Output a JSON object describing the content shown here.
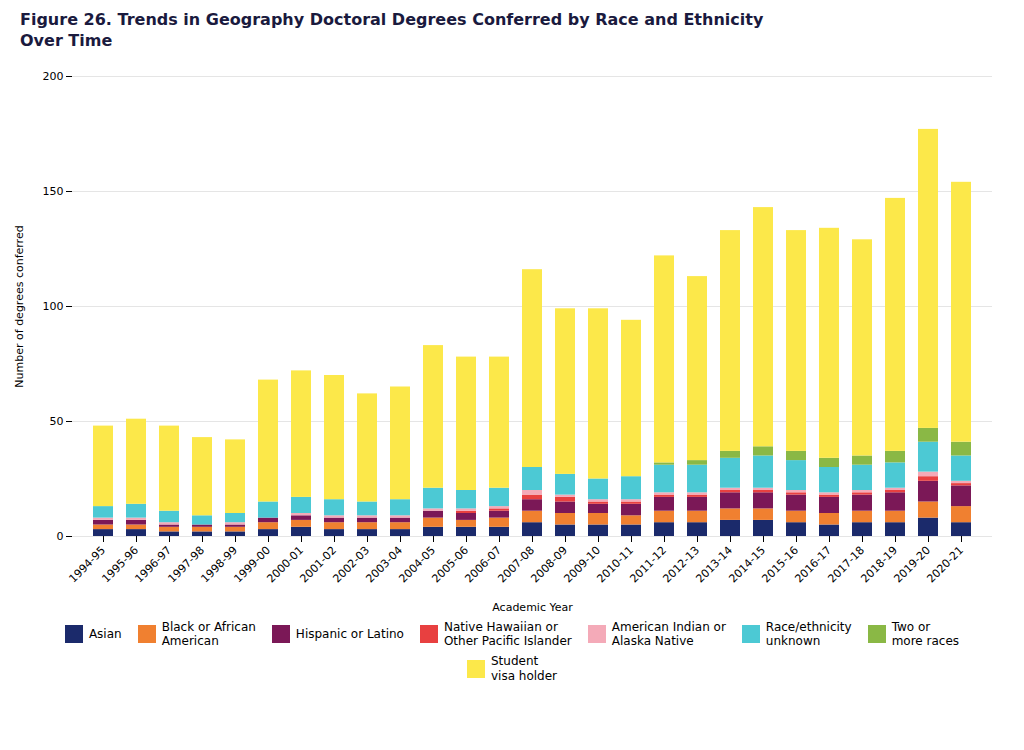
{
  "chart_data": {
    "type": "bar",
    "title": "Figure 26. Trends in Geography Doctoral Degrees Conferred by Race and Ethnicity\nOver Time",
    "xlabel": "Academic Year",
    "ylabel": "Number of degrees conferred",
    "categories": [
      "1994-95",
      "1995-96",
      "1996-97",
      "1997-98",
      "1998-99",
      "1999-00",
      "2000-01",
      "2001-02",
      "2002-03",
      "2003-04",
      "2004-05",
      "2005-06",
      "2006-07",
      "2007-08",
      "2008-09",
      "2009-10",
      "2010-11",
      "2011-12",
      "2012-13",
      "2013-14",
      "2014-15",
      "2015-16",
      "2016-17",
      "2017-18",
      "2018-19",
      "2019-20",
      "2020-21"
    ],
    "series": [
      {
        "name": "Asian",
        "color": "#1b2a6b",
        "values": [
          3,
          3,
          2,
          2,
          2,
          3,
          4,
          3,
          3,
          3,
          4,
          4,
          4,
          6,
          5,
          5,
          5,
          6,
          6,
          7,
          7,
          6,
          5,
          6,
          6,
          8,
          6
        ]
      },
      {
        "name": "Black or African\nAmerican",
        "color": "#f08030",
        "values": [
          2,
          2,
          2,
          2,
          2,
          3,
          3,
          3,
          3,
          3,
          4,
          3,
          4,
          5,
          5,
          5,
          4,
          5,
          5,
          5,
          5,
          5,
          5,
          5,
          5,
          7,
          7
        ]
      },
      {
        "name": "Hispanic or Latino",
        "color": "#7b1857",
        "values": [
          2,
          2,
          1,
          1,
          1,
          2,
          2,
          2,
          2,
          2,
          3,
          3,
          3,
          5,
          5,
          4,
          5,
          6,
          6,
          7,
          7,
          7,
          7,
          7,
          8,
          9,
          9
        ]
      },
      {
        "name": "Native Hawaiian or\nOther Pacific Islander",
        "color": "#e84040",
        "values": [
          0,
          0,
          0,
          0,
          0,
          0,
          0,
          0,
          0,
          0,
          0,
          1,
          1,
          2,
          2,
          1,
          1,
          1,
          1,
          1,
          1,
          1,
          1,
          1,
          1,
          2,
          1
        ]
      },
      {
        "name": "American Indian or\nAlaska Native",
        "color": "#f4aab8",
        "values": [
          1,
          1,
          1,
          0,
          1,
          0,
          1,
          1,
          1,
          1,
          1,
          1,
          1,
          2,
          1,
          1,
          1,
          1,
          1,
          1,
          1,
          1,
          1,
          1,
          1,
          2,
          1
        ]
      },
      {
        "name": "Race/ethnicity\nunknown",
        "color": "#4cc9d4",
        "values": [
          5,
          6,
          5,
          4,
          4,
          7,
          7,
          7,
          6,
          7,
          9,
          8,
          8,
          10,
          9,
          9,
          10,
          12,
          12,
          13,
          14,
          13,
          11,
          11,
          11,
          13,
          11
        ]
      },
      {
        "name": "Two or\nmore races",
        "color": "#8ab845",
        "values": [
          0,
          0,
          0,
          0,
          0,
          0,
          0,
          0,
          0,
          0,
          0,
          0,
          0,
          0,
          0,
          0,
          0,
          1,
          2,
          3,
          4,
          4,
          4,
          4,
          5,
          6,
          6
        ]
      },
      {
        "name": "Student\nvisa holder",
        "color": "#fce84a",
        "values": [
          35,
          37,
          37,
          34,
          32,
          53,
          55,
          54,
          47,
          49,
          62,
          58,
          57,
          86,
          72,
          74,
          68,
          90,
          80,
          96,
          104,
          96,
          100,
          94,
          110,
          130,
          113
        ]
      }
    ],
    "ylim": [
      0,
      200
    ],
    "yticks": [
      0,
      50,
      100,
      150,
      200
    ],
    "grid": true,
    "stacked": true,
    "legend": "bottom"
  }
}
